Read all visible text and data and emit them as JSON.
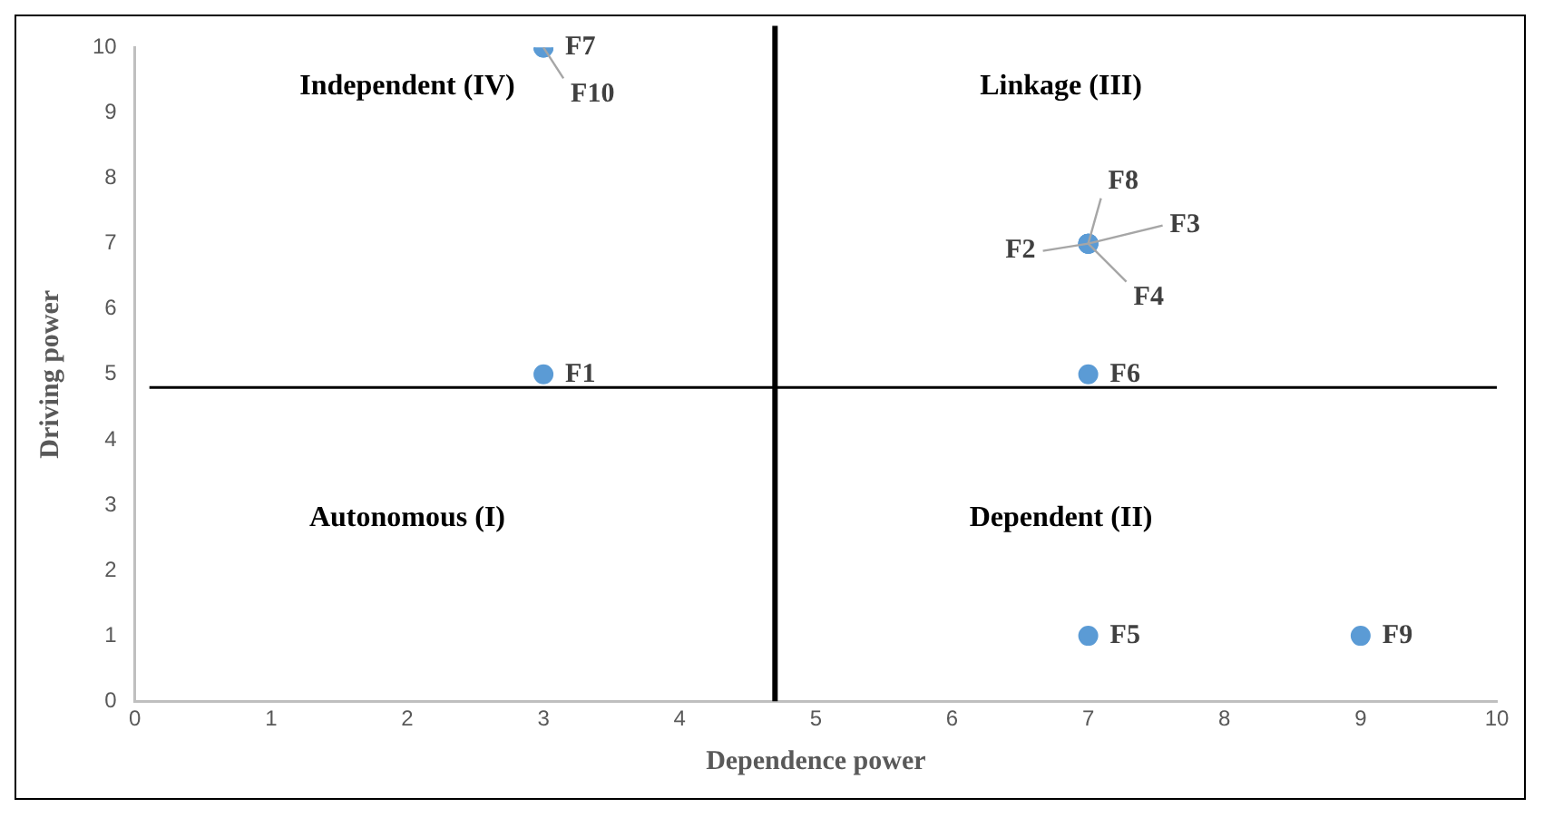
{
  "chart_data": {
    "type": "scatter",
    "xlabel": "Dependence power",
    "ylabel": "Driving power",
    "series": [
      {
        "color": "#5b9bd5",
        "x": [
          3,
          7,
          7,
          7,
          7,
          7,
          3,
          7,
          9,
          3
        ],
        "values": [
          5,
          7,
          7,
          7,
          1,
          5,
          10,
          7,
          1,
          10
        ],
        "value_labels": [
          "F1",
          "F2",
          "F3",
          "F4",
          "F5",
          "F6",
          "F7",
          "F8",
          "F9",
          "F10"
        ]
      }
    ],
    "xlim": [
      0,
      10
    ],
    "xticks": [
      0,
      1,
      2,
      3,
      4,
      5,
      6,
      7,
      8,
      9,
      10
    ],
    "ylim": [
      0,
      10
    ],
    "yticks": [
      0,
      1,
      2,
      3,
      4,
      5,
      6,
      7,
      8,
      9,
      10
    ],
    "grid": false,
    "legend": false,
    "marker": "circle",
    "ref_lines": [
      {
        "axis": "x",
        "value": 4.7,
        "color": "#000000"
      },
      {
        "axis": "y",
        "value": 4.8,
        "color": "#000000"
      }
    ],
    "annotations": [
      "Independent (IV)",
      "Linkage (III)",
      "Autonomous (I)",
      "Dependent (II)"
    ]
  }
}
